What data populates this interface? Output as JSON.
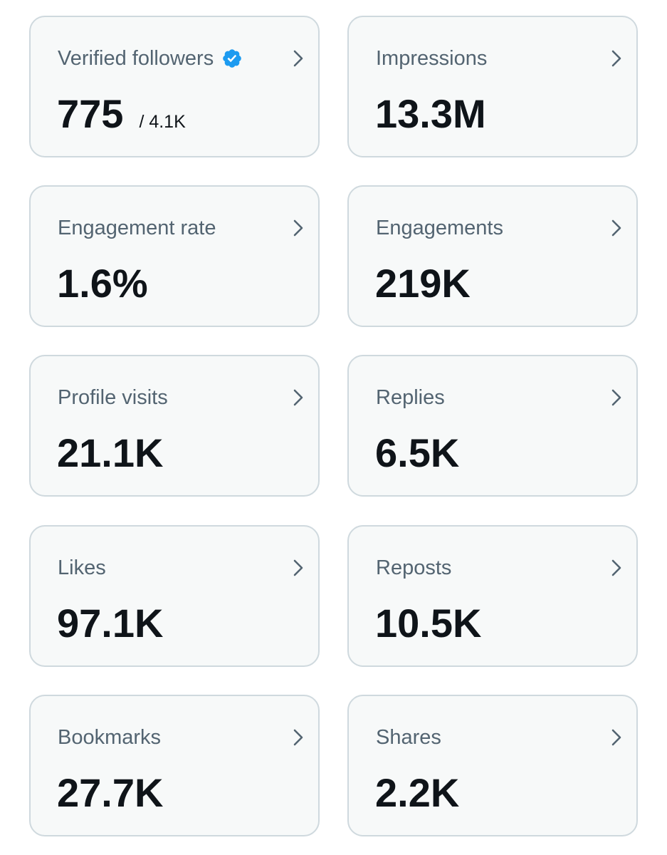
{
  "colors": {
    "card_background": "#f7f9f9",
    "card_border": "#cfd9de",
    "label_text": "#536471",
    "value_text": "#0f1419",
    "verified_badge": "#1d9bf0",
    "chevron": "#536471"
  },
  "metrics": [
    {
      "label": "Verified followers",
      "value": "775",
      "subvalue": "/ 4.1K",
      "icon": "verified-badge-icon"
    },
    {
      "label": "Impressions",
      "value": "13.3M"
    },
    {
      "label": "Engagement rate",
      "value": "1.6%"
    },
    {
      "label": "Engagements",
      "value": "219K"
    },
    {
      "label": "Profile visits",
      "value": "21.1K"
    },
    {
      "label": "Replies",
      "value": "6.5K"
    },
    {
      "label": "Likes",
      "value": "97.1K"
    },
    {
      "label": "Reposts",
      "value": "10.5K"
    },
    {
      "label": "Bookmarks",
      "value": "27.7K"
    },
    {
      "label": "Shares",
      "value": "2.2K"
    }
  ]
}
